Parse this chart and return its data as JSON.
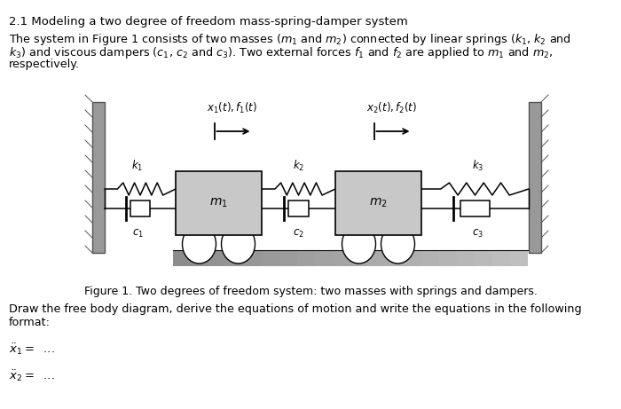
{
  "title": "2.1 Modeling a two degree of freedom mass-spring-damper system",
  "figure_caption": "Figure 1. Two degrees of freedom system: two masses with springs and dampers.",
  "paragraph2": "Draw the free body diagram, derive the equations of motion and write the equations in the following\nformat:",
  "bg_color": "#ffffff",
  "text_color": "#000000",
  "wall_color": "#909090",
  "mass_color": "#c8c8c8",
  "ground_color": "#b0b0b0"
}
